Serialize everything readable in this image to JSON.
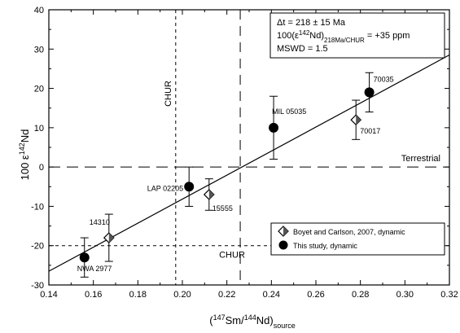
{
  "chart_data": {
    "type": "scatter",
    "xlabel": "(147Sm/144Nd)source",
    "ylabel": "100 ε142Nd",
    "xlim": [
      0.14,
      0.32
    ],
    "ylim": [
      -30,
      40
    ],
    "xticks": [
      "0.14",
      "0.16",
      "0.18",
      "0.20",
      "0.22",
      "0.24",
      "0.26",
      "0.28",
      "0.30",
      "0.32"
    ],
    "yticks": [
      "-30",
      "-20",
      "-10",
      "0",
      "10",
      "20",
      "30",
      "40"
    ],
    "grid": false,
    "legend": {
      "placement": "bottom-right",
      "entries": [
        "Boyet and Carlson, 2007, dynamic",
        "This study, dynamic"
      ]
    },
    "annotation": {
      "line1": "Δt = 218 ± 15 Ma",
      "line2": "100(ε142Nd)218Ma/CHUR = +35 ppm",
      "line3": "MSWD = 1.5"
    },
    "reference_lines": {
      "chur_vertical": {
        "x": 0.197,
        "label": "CHUR"
      },
      "chur_horizontal": {
        "y": -20,
        "label": "CHUR"
      },
      "terrestrial_horizontal": {
        "y": 0,
        "label": "Terrestrial"
      },
      "intercept_vertical": {
        "x": 0.226
      }
    },
    "regression_line": {
      "x": [
        0.14,
        0.32
      ],
      "y": [
        -26.5,
        28.5
      ]
    },
    "series": [
      {
        "name": "Boyet and Carlson, 2007, dynamic",
        "marker": "diamond",
        "points": [
          {
            "label": "14310",
            "x": 0.167,
            "y": -18,
            "err": 6
          },
          {
            "label": "15555",
            "x": 0.212,
            "y": -7,
            "err": 4
          },
          {
            "label": "70017",
            "x": 0.278,
            "y": 12,
            "err": 5
          }
        ]
      },
      {
        "name": "This study, dynamic",
        "marker": "circle",
        "points": [
          {
            "label": "NWA 2977",
            "x": 0.156,
            "y": -23,
            "err": 5
          },
          {
            "label": "LAP 02205",
            "x": 0.203,
            "y": -5,
            "err": 5
          },
          {
            "label": "MIL 05035",
            "x": 0.241,
            "y": 10,
            "err": 8
          },
          {
            "label": "70035",
            "x": 0.284,
            "y": 19,
            "err": 5
          }
        ]
      }
    ]
  }
}
